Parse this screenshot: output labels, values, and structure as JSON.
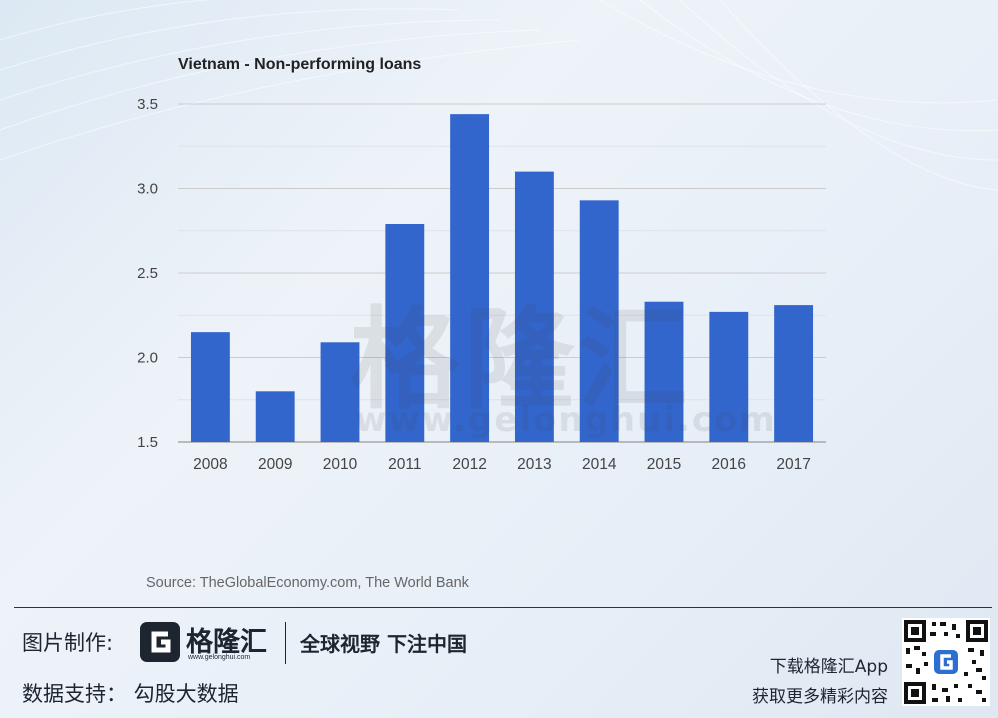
{
  "chart_data": {
    "type": "bar",
    "title": "Vietnam - Non-performing loans",
    "xlabel": "",
    "ylabel": "",
    "categories": [
      "2008",
      "2009",
      "2010",
      "2011",
      "2012",
      "2013",
      "2014",
      "2015",
      "2016",
      "2017"
    ],
    "values": [
      2.15,
      1.8,
      2.09,
      2.79,
      3.44,
      3.1,
      2.93,
      2.33,
      2.27,
      2.31
    ],
    "ylim": [
      1.5,
      3.5
    ],
    "yticks": [
      "1.5",
      "2.0",
      "2.5",
      "3.0",
      "3.5"
    ],
    "bar_color": "#3366cc",
    "grid": true,
    "legend": "none"
  },
  "watermark": {
    "text": "格隆汇",
    "url": "www.gelonghui.com"
  },
  "source": "Source: TheGlobalEconomy.com, The World Bank",
  "footer": {
    "made_by_label": "图片制作:",
    "brand_name": "格隆汇",
    "brand_url": "www.gelonghui.com",
    "slogan": "全球视野 下注中国",
    "data_support": "数据支持： 勾股大数据",
    "download_line1": "下载格隆汇App",
    "download_line2": "获取更多精彩内容"
  },
  "colors": {
    "bar": "#3366cc",
    "grid": "#cccccc",
    "axis_text": "#444444"
  }
}
